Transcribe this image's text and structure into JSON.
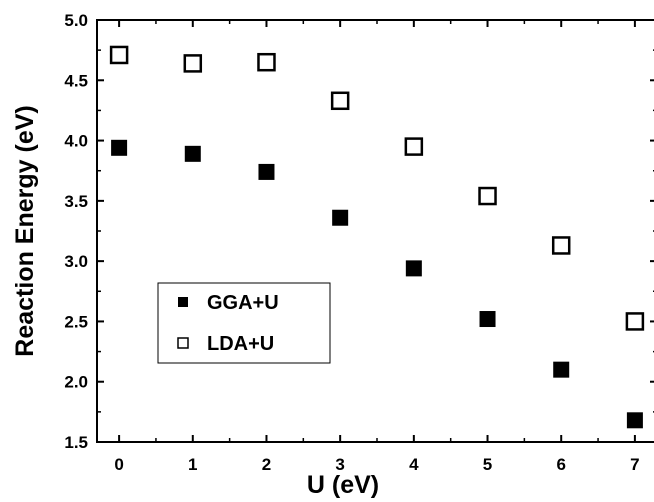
{
  "chart_data": {
    "type": "scatter",
    "xlabel": "U (eV)",
    "ylabel": "Reaction Energy (eV)",
    "xlim": [
      -0.3,
      7.3
    ],
    "ylim": [
      1.5,
      5.0
    ],
    "xticks": [
      0,
      1,
      2,
      3,
      4,
      5,
      6,
      7
    ],
    "yticks": [
      1.5,
      2.0,
      2.5,
      3.0,
      3.5,
      4.0,
      4.5,
      5.0
    ],
    "xtick_labels": [
      "0",
      "1",
      "2",
      "3",
      "4",
      "5",
      "6",
      "7"
    ],
    "ytick_labels": [
      "1.5",
      "2.0",
      "2.5",
      "3.0",
      "3.5",
      "4.0",
      "4.5",
      "5.0"
    ],
    "grid": false,
    "legend_position": "center-left",
    "series": [
      {
        "name": "GGA+U",
        "marker": "filled-square",
        "color": "#000000",
        "x": [
          0,
          1,
          2,
          3,
          4,
          5,
          6,
          7
        ],
        "y": [
          3.94,
          3.89,
          3.74,
          3.36,
          2.94,
          2.52,
          2.1,
          1.68
        ]
      },
      {
        "name": "LDA+U",
        "marker": "open-square",
        "color": "#000000",
        "x": [
          0,
          1,
          2,
          3,
          4,
          5,
          6,
          7
        ],
        "y": [
          4.71,
          4.64,
          4.65,
          4.33,
          3.95,
          3.54,
          3.13,
          2.5
        ]
      }
    ]
  }
}
